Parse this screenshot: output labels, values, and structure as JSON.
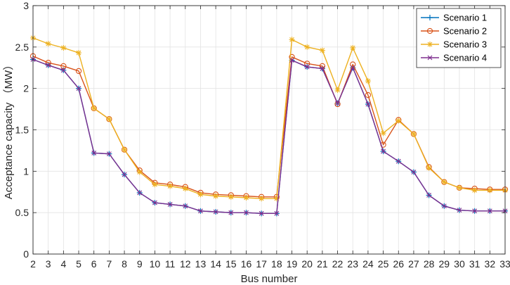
{
  "chart_data": {
    "type": "line",
    "title": "",
    "xlabel": "Bus number",
    "ylabel": "Acceptance capacity （MW）",
    "x": [
      2,
      3,
      4,
      5,
      6,
      7,
      8,
      9,
      10,
      11,
      12,
      13,
      14,
      15,
      16,
      17,
      18,
      19,
      20,
      21,
      22,
      23,
      24,
      25,
      26,
      27,
      28,
      29,
      30,
      31,
      32,
      33
    ],
    "xlim": [
      2,
      33
    ],
    "ylim": [
      0,
      3
    ],
    "yticks": [
      0,
      0.5,
      1,
      1.5,
      2,
      2.5,
      3
    ],
    "ytick_labels": [
      "0",
      "0.5",
      "1",
      "1.5",
      "2",
      "2.5",
      "3"
    ],
    "grid": true,
    "legend_position": "top-right",
    "series": [
      {
        "name": "Scenario 1",
        "color": "#0072BD",
        "marker": "plus",
        "values": [
          2.35,
          2.28,
          2.22,
          2.0,
          1.22,
          1.21,
          0.96,
          0.74,
          0.62,
          0.6,
          0.58,
          0.52,
          0.51,
          0.5,
          0.5,
          0.49,
          0.49,
          2.34,
          2.26,
          2.24,
          1.82,
          2.25,
          1.81,
          1.24,
          1.12,
          0.99,
          0.71,
          0.58,
          0.53,
          0.52,
          0.52,
          0.52
        ]
      },
      {
        "name": "Scenario 2",
        "color": "#D95319",
        "marker": "circle",
        "values": [
          2.39,
          2.31,
          2.27,
          2.21,
          1.76,
          1.63,
          1.26,
          1.01,
          0.86,
          0.84,
          0.81,
          0.74,
          0.72,
          0.71,
          0.7,
          0.69,
          0.69,
          2.38,
          2.3,
          2.27,
          1.81,
          2.29,
          1.92,
          1.32,
          1.62,
          1.45,
          1.05,
          0.87,
          0.8,
          0.79,
          0.78,
          0.78
        ]
      },
      {
        "name": "Scenario 3",
        "color": "#EDB120",
        "marker": "star",
        "values": [
          2.61,
          2.54,
          2.49,
          2.43,
          1.76,
          1.63,
          1.26,
          0.99,
          0.84,
          0.82,
          0.79,
          0.72,
          0.7,
          0.69,
          0.68,
          0.67,
          0.67,
          2.59,
          2.5,
          2.46,
          1.98,
          2.49,
          2.09,
          1.46,
          1.61,
          1.45,
          1.04,
          0.87,
          0.8,
          0.77,
          0.77,
          0.77
        ]
      },
      {
        "name": "Scenario 4",
        "color": "#7E2F8E",
        "marker": "x",
        "values": [
          2.35,
          2.28,
          2.22,
          2.0,
          1.22,
          1.21,
          0.96,
          0.74,
          0.62,
          0.6,
          0.58,
          0.52,
          0.51,
          0.5,
          0.5,
          0.49,
          0.49,
          2.34,
          2.26,
          2.24,
          1.82,
          2.25,
          1.81,
          1.24,
          1.12,
          0.99,
          0.71,
          0.58,
          0.53,
          0.52,
          0.52,
          0.52
        ]
      }
    ]
  }
}
